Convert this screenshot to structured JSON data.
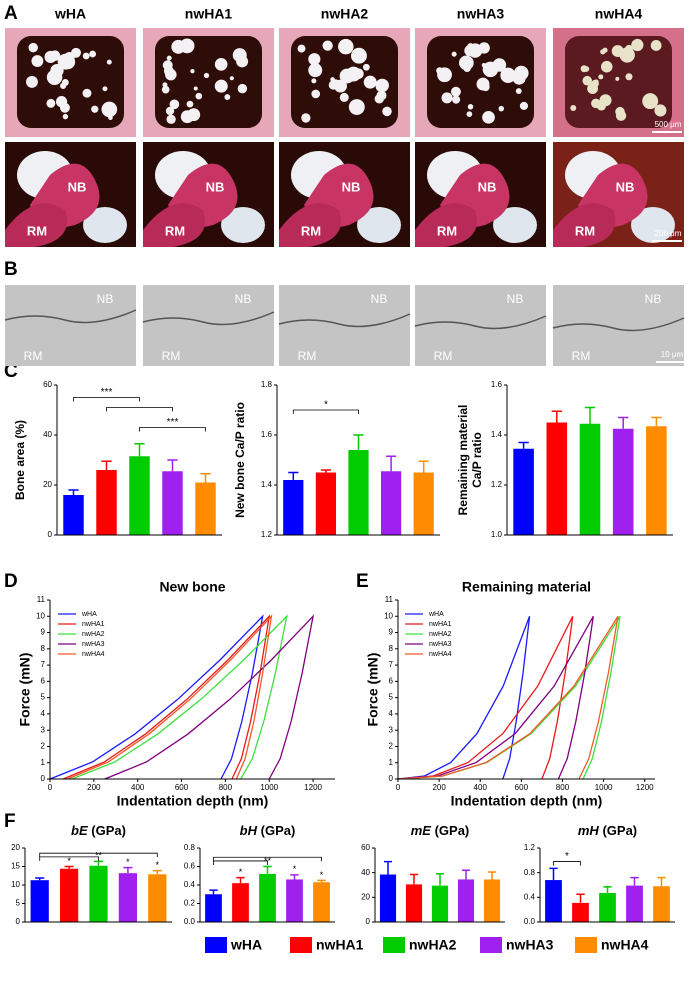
{
  "panel_labels": [
    "A",
    "B",
    "C",
    "D",
    "E",
    "F"
  ],
  "images": {
    "columns": [
      "wHA",
      "nwHA1",
      "nwHA2",
      "nwHA3",
      "nwHA4"
    ],
    "region_labels": [
      "NB",
      "RM"
    ],
    "scale_bars": [
      "500 μm",
      "200 μm",
      "10 μm"
    ]
  },
  "legend": {
    "names": [
      "wHA",
      "nwHA1",
      "nwHA2",
      "nwHA3",
      "nwHA4"
    ],
    "colors": [
      "#0000ff",
      "#ff0000",
      "#00cc00",
      "#a020f0",
      "#ff8c00"
    ]
  },
  "chart_data": [
    {
      "type": "bar",
      "ylabel": [
        "Bone area (%)"
      ],
      "ylim": [
        0,
        60
      ],
      "yticks": [
        0,
        20,
        40,
        60
      ],
      "values": [
        16,
        26,
        31.5,
        25.5,
        21
      ],
      "errors": [
        2,
        3.5,
        5,
        4.5,
        3.5
      ],
      "annotations": [
        "***",
        "***"
      ]
    },
    {
      "type": "bar",
      "ylabel": [
        "New bone Ca/P ratio"
      ],
      "ylim": [
        1.2,
        1.8
      ],
      "yticks": [
        1.2,
        1.4,
        1.6,
        1.8
      ],
      "values": [
        1.42,
        1.45,
        1.54,
        1.455,
        1.45
      ],
      "errors": [
        0.03,
        0.01,
        0.06,
        0.06,
        0.045
      ],
      "annotations": [
        "*"
      ]
    },
    {
      "type": "bar",
      "ylabel": [
        "Remaining material",
        "Ca/P ratio"
      ],
      "ylim": [
        1,
        1.6
      ],
      "yticks": [
        {
          "value": 1,
          "label": "1.0"
        },
        1.2,
        1.4,
        1.6
      ],
      "values": [
        1.345,
        1.45,
        1.445,
        1.425,
        1.435
      ],
      "errors": [
        0.025,
        0.045,
        0.065,
        0.045,
        0.035
      ]
    },
    {
      "type": "line",
      "title": "New bone",
      "xlabel": "Indentation depth (nm)",
      "ylabel": "Force (mN)",
      "xlim": [
        0,
        1300
      ],
      "ylim": [
        0,
        11
      ],
      "xticks": [
        0,
        200,
        400,
        600,
        800,
        1000,
        1200
      ],
      "yticks": [
        0,
        1,
        2,
        3,
        4,
        5,
        6,
        7,
        8,
        9,
        10,
        11
      ],
      "series": [
        {
          "name": "wHA",
          "color": "#1a1aff",
          "x": [
            0,
            194,
            388,
            582,
            776,
            970,
            923,
            875,
            828,
            780
          ],
          "values": [
            0,
            1.05,
            2.77,
            4.89,
            7.32,
            10,
            6.5,
            3.54,
            1.25,
            0
          ]
        },
        {
          "name": "nwHA1",
          "color": "#e8191a",
          "x": [
            60,
            248,
            436,
            624,
            812,
            1000,
            958,
            915,
            873,
            830
          ],
          "values": [
            0,
            1.05,
            2.77,
            4.89,
            7.32,
            10,
            6.5,
            3.54,
            1.25,
            0
          ]
        },
        {
          "name": "nwHA2",
          "color": "#3ee03e",
          "x": [
            100,
            296,
            492,
            688,
            884,
            1080,
            1028,
            975,
            923,
            870
          ],
          "values": [
            0,
            1.05,
            2.77,
            4.89,
            7.32,
            10,
            6.5,
            3.54,
            1.25,
            0
          ]
        },
        {
          "name": "nwHA3",
          "color": "#800080",
          "x": [
            250,
            440,
            630,
            820,
            1010,
            1200,
            1150,
            1100,
            1050,
            1000
          ],
          "values": [
            0,
            1.05,
            2.77,
            4.89,
            7.32,
            10,
            6.5,
            3.54,
            1.25,
            0
          ]
        },
        {
          "name": "nwHA4",
          "color": "#f05a28",
          "x": [
            80,
            266,
            452,
            638,
            824,
            1010,
            970,
            930,
            890,
            850
          ],
          "values": [
            0,
            1.05,
            2.77,
            4.89,
            7.32,
            10,
            6.5,
            3.54,
            1.25,
            0
          ]
        }
      ]
    },
    {
      "type": "line",
      "title": "Remaining material",
      "xlabel": "Indentation depth (nm)",
      "ylabel": "Force (mN)",
      "xlim": [
        0,
        1250
      ],
      "ylim": [
        0,
        11
      ],
      "xticks": [
        0,
        200,
        400,
        600,
        800,
        1000,
        1200
      ],
      "yticks": [
        0,
        1,
        2,
        3,
        4,
        5,
        6,
        7,
        8,
        9,
        10,
        11
      ],
      "series": [
        {
          "name": "wHA",
          "color": "#1a1aff",
          "x": [
            0,
            128,
            256,
            384,
            512,
            640,
            608,
            575,
            543,
            510
          ],
          "values": [
            0,
            0.18,
            1.01,
            2.79,
            5.72,
            10,
            6.5,
            3.54,
            1.25,
            0
          ]
        },
        {
          "name": "nwHA1",
          "color": "#e8191a",
          "x": [
            0,
            170,
            340,
            510,
            680,
            850,
            813,
            775,
            738,
            700
          ],
          "values": [
            0,
            0.18,
            1.01,
            2.79,
            5.72,
            10,
            6.5,
            3.54,
            1.25,
            0
          ]
        },
        {
          "name": "nwHA2",
          "color": "#3ee03e",
          "x": [
            0,
            216,
            432,
            648,
            864,
            1080,
            1035,
            990,
            945,
            900
          ],
          "values": [
            0,
            0.18,
            1.01,
            2.79,
            5.72,
            10,
            6.5,
            3.54,
            1.25,
            0
          ]
        },
        {
          "name": "nwHA3",
          "color": "#800080",
          "x": [
            0,
            190,
            380,
            570,
            760,
            950,
            908,
            865,
            823,
            780
          ],
          "values": [
            0,
            0.18,
            1.01,
            2.79,
            5.72,
            10,
            6.5,
            3.54,
            1.25,
            0
          ]
        },
        {
          "name": "nwHA4",
          "color": "#f05a28",
          "x": [
            0,
            214,
            428,
            642,
            856,
            1070,
            1023,
            975,
            928,
            880
          ],
          "values": [
            0,
            0.18,
            1.01,
            2.79,
            5.72,
            10,
            6.5,
            3.54,
            1.25,
            0
          ]
        }
      ]
    },
    {
      "type": "bar",
      "title_symbol": "bE",
      "title_unit": "(GPa)",
      "ylim": [
        0,
        20
      ],
      "yticks": [
        0,
        5,
        10,
        15,
        20
      ],
      "values": [
        11.3,
        14.4,
        15.2,
        13.2,
        12.9
      ],
      "errors": [
        0.6,
        0.6,
        1.2,
        1.5,
        1
      ],
      "star_labels": [
        null,
        "*",
        "**",
        "*",
        "*"
      ]
    },
    {
      "type": "bar",
      "title_symbol": "bH",
      "title_unit": "(GPa)",
      "ylim": [
        0,
        0.8
      ],
      "yticks": [
        {
          "value": 0,
          "label": "0.0"
        },
        0.2,
        0.4,
        0.6,
        0.8
      ],
      "values": [
        0.3,
        0.42,
        0.52,
        0.46,
        0.43
      ],
      "errors": [
        0.045,
        0.06,
        0.08,
        0.05,
        0.02
      ],
      "star_labels": [
        null,
        "*",
        "**",
        "*",
        "*"
      ]
    },
    {
      "type": "bar",
      "title_symbol": "mE",
      "title_unit": "(GPa)",
      "ylim": [
        0,
        60
      ],
      "yticks": [
        0,
        20,
        40,
        60
      ],
      "values": [
        38.5,
        30.5,
        29.5,
        34.5,
        34.5
      ],
      "errors": [
        10.5,
        8,
        9.5,
        7.5,
        6
      ]
    },
    {
      "type": "bar",
      "title_symbol": "mH",
      "title_unit": "(GPa)",
      "ylim": [
        0,
        1.2
      ],
      "yticks": [
        {
          "value": 0,
          "label": "0.0"
        },
        0.4,
        0.8,
        1.2
      ],
      "values": [
        0.68,
        0.31,
        0.47,
        0.59,
        0.58
      ],
      "errors": [
        0.19,
        0.14,
        0.1,
        0.13,
        0.14
      ],
      "annotations": [
        "*"
      ]
    }
  ]
}
